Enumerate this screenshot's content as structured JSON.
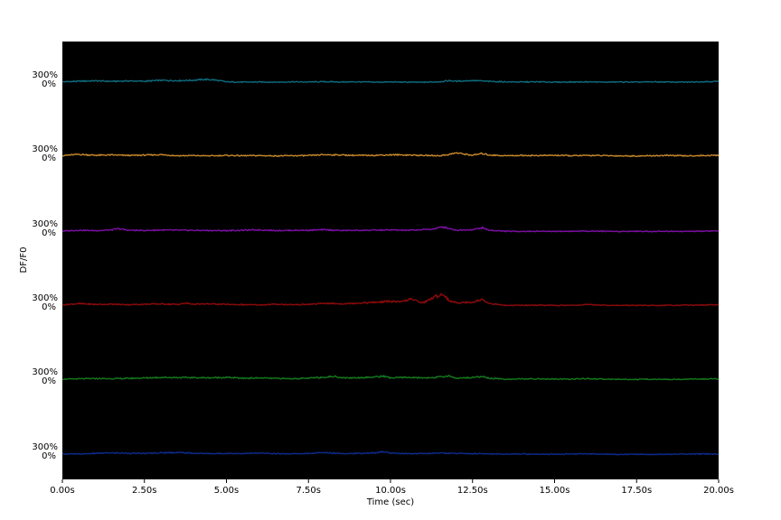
{
  "chart_data": {
    "type": "line",
    "xlabel": "Time (sec)",
    "ylabel": "DF/F0",
    "xlim": [
      0,
      20
    ],
    "x_ticks": [
      "0.00s",
      "2.50s",
      "5.00s",
      "7.50s",
      "10.00s",
      "12.50s",
      "15.00s",
      "17.50s",
      "20.00s"
    ],
    "x_tick_values": [
      0,
      2.5,
      5,
      7.5,
      10,
      12.5,
      15,
      17.5,
      20
    ],
    "trace_scale_labels": [
      "300%",
      "0%"
    ],
    "background_color": "#000000",
    "grid": false,
    "legend": "none",
    "series": [
      {
        "color": "#0e6b7e",
        "x": [
          0,
          0.5,
          1.0,
          1.5,
          2.0,
          2.5,
          3.0,
          3.5,
          4.0,
          4.3,
          4.6,
          5.0,
          5.5,
          6.0,
          6.5,
          7.0,
          7.5,
          8.0,
          8.5,
          9.0,
          9.5,
          10.0,
          10.5,
          11.0,
          11.5,
          11.8,
          12.0,
          12.5,
          13.0,
          13.5,
          14.0,
          14.5,
          15.0,
          15.5,
          16.0,
          16.5,
          17.0,
          17.5,
          18.0,
          18.5,
          19.0,
          19.5,
          20.0
        ],
        "values": [
          40,
          60,
          75,
          55,
          70,
          60,
          90,
          80,
          95,
          120,
          110,
          40,
          30,
          35,
          30,
          40,
          35,
          45,
          35,
          40,
          30,
          35,
          30,
          25,
          45,
          80,
          60,
          85,
          55,
          40,
          35,
          40,
          30,
          35,
          40,
          30,
          35,
          30,
          40,
          35,
          30,
          45,
          55
        ]
      },
      {
        "color": "#c8892a",
        "x": [
          0,
          0.5,
          1.0,
          1.5,
          2.0,
          2.5,
          3.0,
          3.5,
          4.0,
          4.5,
          5.0,
          5.5,
          6.0,
          6.5,
          7.0,
          7.5,
          8.0,
          8.5,
          9.0,
          9.5,
          10.0,
          10.5,
          11.0,
          11.5,
          11.8,
          12.0,
          12.5,
          12.8,
          13.0,
          13.5,
          14.0,
          14.5,
          15.0,
          15.5,
          16.0,
          16.5,
          17.0,
          17.5,
          18.0,
          18.5,
          19.0,
          19.5,
          20.0
        ],
        "values": [
          50,
          90,
          60,
          70,
          55,
          65,
          80,
          45,
          50,
          40,
          55,
          45,
          50,
          40,
          45,
          50,
          80,
          70,
          55,
          60,
          75,
          70,
          55,
          45,
          90,
          140,
          60,
          120,
          70,
          45,
          55,
          50,
          60,
          45,
          55,
          50,
          40,
          35,
          45,
          55,
          40,
          50,
          60
        ]
      },
      {
        "color": "#7d0fa6",
        "x": [
          0,
          0.5,
          1.0,
          1.5,
          1.7,
          2.0,
          2.5,
          3.0,
          3.5,
          4.0,
          4.5,
          5.0,
          5.5,
          6.0,
          6.5,
          7.0,
          7.5,
          8.0,
          8.5,
          9.0,
          9.5,
          10.0,
          10.5,
          11.0,
          11.3,
          11.6,
          11.8,
          12.0,
          12.5,
          12.8,
          13.0,
          13.5,
          14.0,
          14.5,
          15.0,
          15.5,
          16.0,
          16.5,
          17.0,
          17.5,
          18.0,
          18.5,
          19.0,
          19.5,
          20.0
        ],
        "values": [
          30,
          60,
          45,
          70,
          110,
          60,
          50,
          65,
          60,
          55,
          50,
          45,
          60,
          70,
          50,
          55,
          60,
          75,
          50,
          55,
          60,
          70,
          55,
          80,
          100,
          170,
          120,
          60,
          80,
          140,
          60,
          25,
          20,
          25,
          20,
          25,
          30,
          25,
          20,
          25,
          20,
          25,
          20,
          25,
          40
        ]
      },
      {
        "color": "#8e0a0a",
        "x": [
          0,
          0.5,
          1.0,
          1.5,
          2.0,
          2.5,
          3.0,
          3.5,
          3.8,
          4.0,
          4.5,
          5.0,
          5.5,
          6.0,
          6.5,
          7.0,
          7.5,
          8.0,
          8.5,
          9.0,
          9.5,
          10.0,
          10.3,
          10.6,
          11.0,
          11.3,
          11.6,
          11.8,
          12.0,
          12.5,
          12.8,
          13.0,
          13.5,
          14.0,
          14.5,
          15.0,
          15.5,
          16.0,
          16.5,
          17.0,
          17.5,
          18.0,
          18.5,
          19.0,
          19.5,
          20.0
        ],
        "values": [
          40,
          80,
          55,
          60,
          45,
          60,
          70,
          55,
          95,
          60,
          70,
          55,
          45,
          35,
          60,
          45,
          55,
          90,
          75,
          100,
          120,
          160,
          130,
          230,
          110,
          280,
          400,
          170,
          110,
          130,
          220,
          90,
          20,
          25,
          30,
          20,
          25,
          45,
          30,
          20,
          25,
          20,
          25,
          30,
          35,
          45
        ]
      },
      {
        "color": "#137a1d",
        "x": [
          0,
          0.5,
          1.0,
          1.5,
          2.0,
          2.5,
          3.0,
          3.5,
          4.0,
          4.5,
          5.0,
          5.5,
          6.0,
          6.5,
          7.0,
          7.5,
          8.0,
          8.3,
          8.6,
          9.0,
          9.5,
          9.8,
          10.0,
          10.5,
          11.0,
          11.5,
          11.8,
          12.0,
          12.5,
          12.8,
          13.0,
          13.5,
          14.0,
          14.5,
          15.0,
          15.5,
          16.0,
          16.5,
          17.0,
          17.5,
          18.0,
          18.5,
          19.0,
          19.5,
          20.0
        ],
        "values": [
          30,
          40,
          50,
          45,
          55,
          70,
          90,
          85,
          80,
          75,
          90,
          60,
          70,
          55,
          45,
          60,
          100,
          120,
          70,
          80,
          100,
          130,
          70,
          90,
          70,
          100,
          140,
          60,
          90,
          120,
          60,
          30,
          35,
          40,
          30,
          35,
          45,
          30,
          25,
          20,
          25,
          20,
          30,
          35,
          40
        ]
      },
      {
        "color": "#0c2a8c",
        "x": [
          0,
          0.5,
          1.0,
          1.5,
          2.0,
          2.5,
          3.0,
          3.5,
          4.0,
          4.5,
          5.0,
          5.5,
          6.0,
          6.5,
          7.0,
          7.5,
          8.0,
          8.5,
          9.0,
          9.5,
          9.8,
          10.0,
          10.5,
          11.0,
          11.5,
          12.0,
          12.5,
          13.0,
          13.5,
          14.0,
          14.5,
          15.0,
          15.5,
          16.0,
          16.5,
          17.0,
          17.5,
          18.0,
          18.5,
          19.0,
          19.5,
          20.0
        ],
        "values": [
          40,
          30,
          55,
          70,
          60,
          50,
          75,
          85,
          60,
          45,
          55,
          50,
          60,
          45,
          40,
          50,
          80,
          55,
          50,
          70,
          110,
          60,
          45,
          50,
          65,
          55,
          45,
          40,
          30,
          35,
          30,
          25,
          30,
          40,
          25,
          20,
          25,
          20,
          25,
          30,
          35,
          30
        ]
      }
    ]
  }
}
